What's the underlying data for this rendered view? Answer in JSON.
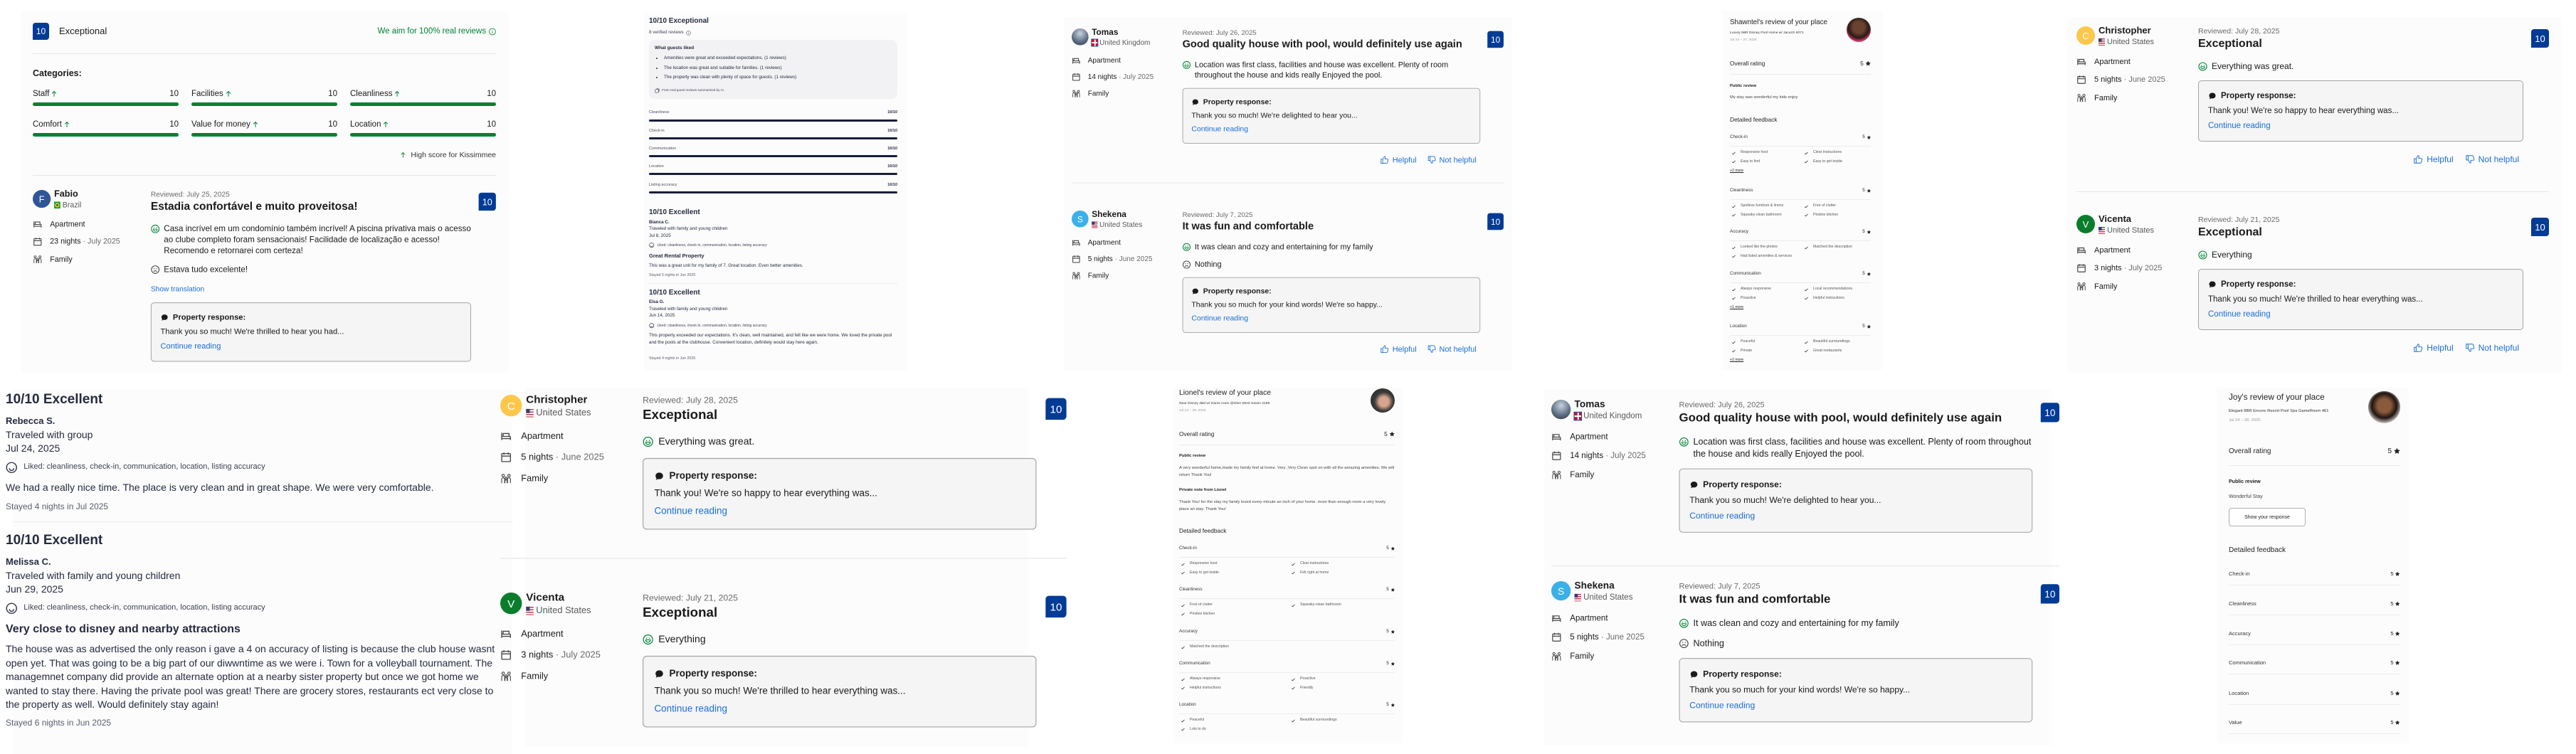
{
  "booking_summary": {
    "score": "10",
    "label": "Exceptional",
    "real_reviews": "We aim for 100% real reviews",
    "categories_title": "Categories:",
    "categories": [
      {
        "name": "Staff",
        "score": "10",
        "value": 10
      },
      {
        "name": "Facilities",
        "score": "10",
        "value": 10
      },
      {
        "name": "Cleanliness",
        "score": "10",
        "value": 10
      },
      {
        "name": "Comfort",
        "score": "10",
        "value": 10
      },
      {
        "name": "Value for money",
        "score": "10",
        "value": 10
      },
      {
        "name": "Location",
        "score": "10",
        "value": 10
      }
    ],
    "high_score": "High score for Kissimmee"
  },
  "booking_common": {
    "response_label": "Property response:",
    "continue_label": "Continue reading",
    "helpful": "Helpful",
    "not_helpful": "Not helpful",
    "show_translation": "Show translation"
  },
  "booking_reviews": {
    "fabio": {
      "initial": "F",
      "avatar_color": "#2f5597",
      "name": "Fabio",
      "flag": "br",
      "country": "Brazil",
      "room": "Apartment",
      "nights": "23 nights",
      "stay_month": "July 2025",
      "traveler": "Family",
      "reviewed": "Reviewed: July 25, 2025",
      "title": "Estadia confortável e muito proveitosa!",
      "score": "10",
      "liked": "Casa incrível em um condomínio também incrível! A piscina privativa mais o acesso ao clube completo foram sensacionais! Facilidade de localização e acesso! Recomendo e retornarei com certeza!",
      "disliked": "Estava tudo excelente!",
      "show_translation": true,
      "response": "Thank you so much! We're thrilled to hear you had..."
    },
    "tomas": {
      "initial": "",
      "avatar_color": "radial-gradient(circle at 50% 30%,#c9d3e0,#5a6b80 60%,#2c3440)",
      "name": "Tomas",
      "flag": "uk",
      "country": "United Kingdom",
      "room": "Apartment",
      "nights": "14 nights",
      "stay_month": "July 2025",
      "traveler": "Family",
      "reviewed": "Reviewed: July 26, 2025",
      "title": "Good quality house with pool, would definitely use again",
      "score": "10",
      "liked": "Location was first class, facilities and house was excellent. Plenty of room throughout the house and kids really Enjoyed the pool.",
      "response": "Thank you so much! We're delighted to hear you..."
    },
    "shekena": {
      "initial": "S",
      "avatar_color": "#3bb0e8",
      "name": "Shekena",
      "flag": "us",
      "country": "United States",
      "room": "Apartment",
      "nights": "5 nights",
      "stay_month": "June 2025",
      "traveler": "Family",
      "reviewed": "Reviewed: July 7, 2025",
      "title": "It was fun and comfortable",
      "score": "10",
      "liked": "It was clean and cozy and entertaining for my family",
      "disliked": "Nothing",
      "response": "Thank you so much for your kind words! We're so happy..."
    },
    "christopher": {
      "initial": "C",
      "avatar_color": "#fcc74a",
      "name": "Christopher",
      "flag": "us",
      "country": "United States",
      "room": "Apartment",
      "nights": "5 nights",
      "stay_month": "June 2025",
      "traveler": "Family",
      "reviewed": "Reviewed: July 28, 2025",
      "title": "Exceptional",
      "score": "10",
      "liked": "Everything was great.",
      "response": "Thank you! We're so happy to hear everything was..."
    },
    "vicenta": {
      "initial": "V",
      "avatar_color": "#0a7d2c",
      "name": "Vicenta",
      "flag": "us",
      "country": "United States",
      "room": "Apartment",
      "nights": "3 nights",
      "stay_month": "July 2025",
      "traveler": "Family",
      "reviewed": "Reviewed: July 21, 2025",
      "title": "Exceptional",
      "score": "10",
      "liked": "Everything",
      "response": "Thank you so much! We're thrilled to hear everything was..."
    }
  },
  "vrbo_summary": {
    "title": "10/10 Exceptional",
    "verified": "8 verified reviews",
    "liked_title": "What guests liked",
    "liked_items": [
      "Amenities were great and exceeded expectations. (1 reviews)",
      "The location was great and suitable for families. (1 reviews)",
      "The property was clean with plenty of space for guests. (1 reviews)"
    ],
    "ai_note": "From real guest reviews summarized by AI.",
    "ratings": [
      {
        "name": "Cleanliness",
        "score": "10/10",
        "value": 10
      },
      {
        "name": "Check-in",
        "score": "10/10",
        "value": 10
      },
      {
        "name": "Communication",
        "score": "10/10",
        "value": 10
      },
      {
        "name": "Location",
        "score": "10/10",
        "value": 10
      },
      {
        "name": "Listing accuracy",
        "score": "10/10",
        "value": 10
      }
    ]
  },
  "vrbo_reviews": {
    "bianca": {
      "heading": "10/10 Excellent",
      "name": "Bianca C.",
      "traveled": "Traveled with family and young children",
      "date": "Jul 8, 2025",
      "liked": "Liked: cleanliness, check-in, communication, location, listing accuracy",
      "title": "Great Rental Property",
      "text": "This was a great unit for my family of 7. Great location. Even better amenities.",
      "stayed": "Stayed 5 nights in Jun 2025"
    },
    "elsa": {
      "heading": "10/10 Excellent",
      "name": "Elsa G.",
      "traveled": "Traveled with family and young children",
      "date": "Jun 14, 2025",
      "liked": "Liked: cleanliness, check-in, communication, location, listing accuracy",
      "text": "This property exceeded our expectations. It's clean, well maintained, and felt like we were home. We loved the private pool and the pools at the clubhouse. Convenient location, definitely would stay here again.",
      "stayed": "Stayed 4 nights in Jun 2025"
    },
    "rebecca": {
      "heading": "10/10 Excellent",
      "name": "Rebecca S.",
      "traveled": "Traveled with group",
      "date": "Jul 24, 2025",
      "liked": "Liked: cleanliness, check-in, communication, location, listing accuracy",
      "text": "We had a really nice time. The place is very clean and in great shape. We were very comfortable.",
      "stayed": "Stayed 4 nights in Jul 2025"
    },
    "melissa": {
      "heading": "10/10 Excellent",
      "name": "Melissa C.",
      "traveled": "Traveled with family and young children",
      "date": "Jun 29, 2025",
      "liked": "Liked: cleanliness, check-in, communication, location, listing accuracy",
      "title": "Very close to disney and nearby attractions",
      "text": "The house was as advertised the only reason i gave a 4 on accuracy of listing is because the club house wasnt open yet. That was going to be a big part of our diwwntime as we were i. Town for a volleyball tournament. The managemnet company did provide an alternate option at a nearby sister property but once we got home we wanted to stay there. Having the private pool was great! There are grocery stores, restaurants ect very close to the property as well. Would definitely stay again!",
      "stayed": "Stayed 6 nights in Jun 2025"
    }
  },
  "airbnb_common": {
    "overall_label": "Overall rating",
    "public_label": "Public review",
    "detailed_label": "Detailed feedback"
  },
  "airbnb_reviews": {
    "shawntel": {
      "title": "Shawntel's review of your place",
      "listing": "Luxury 5BR Disney Pool Home w/ Jacuzzi 6071",
      "dates": "Jul 24 – 27, 2025",
      "avatar_bg": "radial-gradient(circle at 50% 40%,#6b4130 30%,#2a1a14 55%,#e0457a 75%)",
      "overall": "5",
      "public_review": "My stay was wonderful my kids enjoy",
      "categories": [
        {
          "name": "Check-in",
          "rating": "5",
          "items": [
            "Responsive host",
            "Clear instructions",
            "Easy to find",
            "Easy to get inside"
          ],
          "more": "+2 more"
        },
        {
          "name": "Cleanliness",
          "rating": "5",
          "items": [
            "Spotless furniture & linens",
            "Free of clutter",
            "Squeaky-clean bathroom",
            "Pristine kitchen"
          ]
        },
        {
          "name": "Accuracy",
          "rating": "5",
          "items": [
            "Looked like the photos",
            "Matched the description",
            "Had listed amenities & services"
          ]
        },
        {
          "name": "Communication",
          "rating": "5",
          "items": [
            "Always responsive",
            "Local recommendations",
            "Proactive",
            "Helpful instructions"
          ],
          "more": "+1 more"
        },
        {
          "name": "Location",
          "rating": "5",
          "items": [
            "Peaceful",
            "Beautiful surroundings",
            "Private",
            "Great restaurants"
          ],
          "more": "+2 more"
        }
      ]
    },
    "lionel": {
      "title": "Lionel's review of your place",
      "listing": "Near Disney 4Bd w/ Game room @Glen West Haven 2198",
      "dates": "Jul 24 – 29, 2025",
      "avatar_bg": "radial-gradient(circle at 55% 55%,#d9a48c 25%,#3a3a3a 50%,#1c2a1c)",
      "overall": "5",
      "public_review": "A very wonderful home,made my family feel at home. Very ,Very Clean spot on with all the amazing amenities. We will return Thank You!",
      "private_label": "Private note from Lionel",
      "private_note": "Thank You! for the stay my family loved every minute an inch of your home. more than enough room a very lovely place an stay. Thank You!",
      "categories": [
        {
          "name": "Check-in",
          "rating": "5",
          "items": [
            "Responsive host",
            "Clear instructions",
            "Easy to get inside",
            "Felt right at home"
          ]
        },
        {
          "name": "Cleanliness",
          "rating": "5",
          "items": [
            "Free of clutter",
            "Squeaky-clean bathroom",
            "Pristine kitchen"
          ]
        },
        {
          "name": "Accuracy",
          "rating": "5",
          "items": [
            "Matched the description"
          ]
        },
        {
          "name": "Communication",
          "rating": "5",
          "items": [
            "Always responsive",
            "Proactive",
            "Helpful instructions",
            "Friendly"
          ]
        },
        {
          "name": "Location",
          "rating": "5",
          "items": [
            "Peaceful",
            "Beautiful surroundings",
            "Lots to do"
          ]
        }
      ]
    },
    "joy": {
      "title": "Joy's review of your place",
      "listing": "Elegant 8BR Encore Resort Pool Spa GameRoom 461",
      "dates": "Jul 24 – 28, 2025",
      "avatar_bg": "radial-gradient(circle at 50% 45%,#8a5a3c 28%,#1e1410 52%,#e9e4e0 78%)",
      "overall": "5",
      "public_review": "Wonderful Stay",
      "response_button": "Show your response",
      "categories": [
        {
          "name": "Check-in",
          "rating": "5"
        },
        {
          "name": "Cleanliness",
          "rating": "5"
        },
        {
          "name": "Accuracy",
          "rating": "5"
        },
        {
          "name": "Communication",
          "rating": "5"
        },
        {
          "name": "Location",
          "rating": "5"
        },
        {
          "name": "Value",
          "rating": "5"
        }
      ]
    }
  },
  "colors": {
    "booking_blue": "#003b95",
    "booking_green": "#008234",
    "link_blue": "#1a6ed8",
    "vrbo_navy": "#191e3b"
  }
}
